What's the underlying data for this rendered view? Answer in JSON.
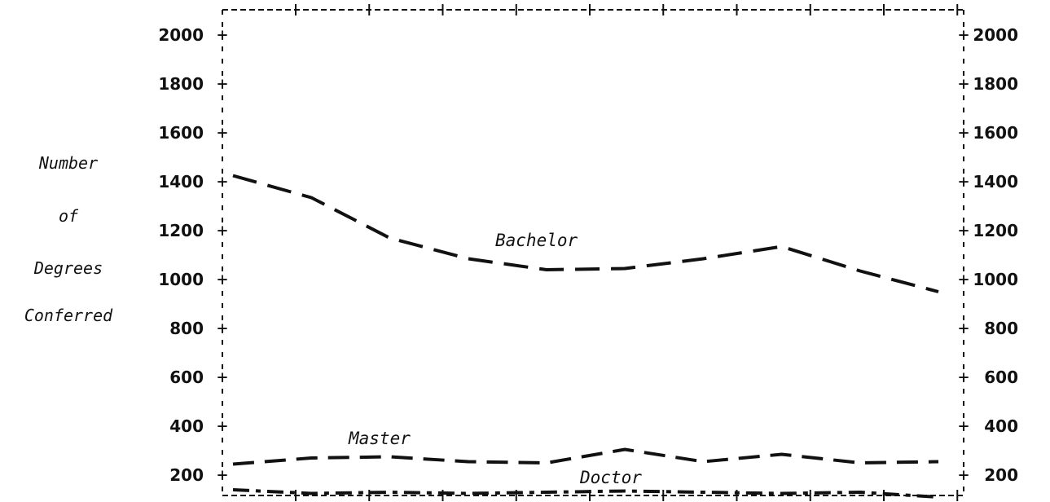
{
  "chart_data": {
    "type": "line",
    "ylabel": [
      "Number",
      "of",
      "Degrees",
      "Conferred"
    ],
    "ylim": [
      100,
      2100
    ],
    "y_ticks": [
      200,
      400,
      600,
      800,
      1000,
      1200,
      1400,
      1600,
      1800,
      2000
    ],
    "x_ticks_count": 11,
    "x_labels": [],
    "grid": false,
    "series": [
      {
        "name": "Bachelor",
        "dash": "long",
        "values": [
          1425,
          1335,
          1170,
          1085,
          1040,
          1045,
          1085,
          1135,
          1035,
          950
        ]
      },
      {
        "name": "Master",
        "dash": "medium",
        "values": [
          245,
          270,
          275,
          255,
          250,
          305,
          255,
          285,
          250,
          255
        ]
      },
      {
        "name": "Doctor",
        "dash": "dashdot",
        "values": [
          140,
          125,
          130,
          125,
          130,
          135,
          130,
          125,
          130,
          110
        ]
      }
    ]
  }
}
